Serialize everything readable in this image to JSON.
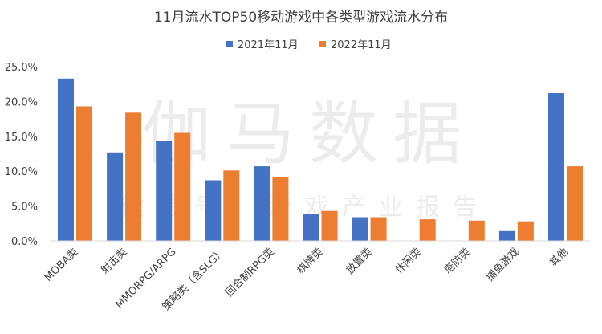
{
  "chart_data": {
    "type": "bar",
    "title": "11月流水TOP50移动游戏中各类型游戏流水分布",
    "categories": [
      "MOBA类",
      "射击类",
      "MMORPG/ARPG",
      "策略类（含SLG）",
      "回合制RPG类",
      "棋牌类",
      "放置类",
      "休闲类",
      "塔防类",
      "捕鱼游戏",
      "其他"
    ],
    "series": [
      {
        "name": "2021年11月",
        "color": "#4472C4",
        "values": [
          23.3,
          12.7,
          14.4,
          8.7,
          10.7,
          3.9,
          3.4,
          0,
          0,
          1.4,
          21.2
        ]
      },
      {
        "name": "2022年11月",
        "color": "#ED7D31",
        "values": [
          19.3,
          18.4,
          15.5,
          10.1,
          9.2,
          4.3,
          3.4,
          3.1,
          2.9,
          2.8,
          10.7
        ]
      }
    ],
    "yticks": [
      "0.0%",
      "5.0%",
      "10.0%",
      "15.0%",
      "20.0%",
      "25.0%"
    ],
    "ylim": [
      0,
      25
    ],
    "legend_position": "top-center",
    "grid": false
  },
  "watermark": {
    "main": "伽马数据",
    "sub": "微信号：游戏产业报告"
  }
}
